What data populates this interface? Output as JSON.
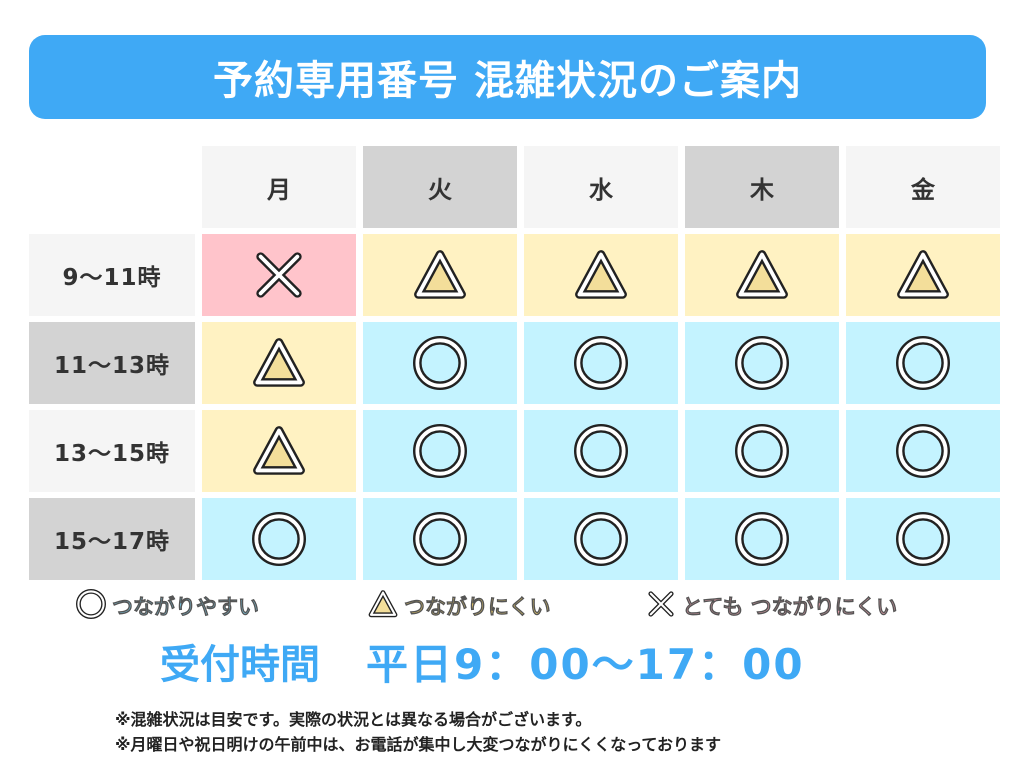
{
  "title": "予約専用番号 混雑状況のご案内",
  "days": [
    {
      "label": "月",
      "style": "light"
    },
    {
      "label": "火",
      "style": "gray"
    },
    {
      "label": "水",
      "style": "light"
    },
    {
      "label": "木",
      "style": "gray"
    },
    {
      "label": "金",
      "style": "light"
    }
  ],
  "rows": [
    {
      "time": "9〜11時",
      "time_style": "light",
      "status": [
        "x",
        "triangle",
        "triangle",
        "triangle",
        "triangle"
      ]
    },
    {
      "time": "11〜13時",
      "time_style": "gray",
      "status": [
        "triangle",
        "circle",
        "circle",
        "circle",
        "circle"
      ]
    },
    {
      "time": "13〜15時",
      "time_style": "light",
      "status": [
        "triangle",
        "circle",
        "circle",
        "circle",
        "circle"
      ]
    },
    {
      "time": "15〜17時",
      "time_style": "gray",
      "status": [
        "circle",
        "circle",
        "circle",
        "circle",
        "circle"
      ]
    }
  ],
  "legend": [
    {
      "symbol": "circle",
      "label": "つながりやすい",
      "color": "#7fd3f0"
    },
    {
      "symbol": "triangle",
      "label": "つながりにくい",
      "color": "#f5d56a"
    },
    {
      "symbol": "x",
      "label": "とても つながりにくい",
      "color": "#f6a7b4"
    }
  ],
  "hours": {
    "label": "受付時間",
    "value": "平日9：00〜17：00"
  },
  "notes": [
    "※混雑状況は目安です。実際の状況とは異なる場合がございます。",
    "※月曜日や祝日明けの午前中は、お電話が集中し大変つながりにくくなっております"
  ],
  "colors": {
    "accent": "#3fa9f5",
    "x_cell": "#ffc4cb",
    "triangle_cell": "#fff2c2",
    "circle_cell": "#c4f3ff",
    "header_light": "#f5f5f5",
    "header_gray": "#d3d3d3"
  }
}
